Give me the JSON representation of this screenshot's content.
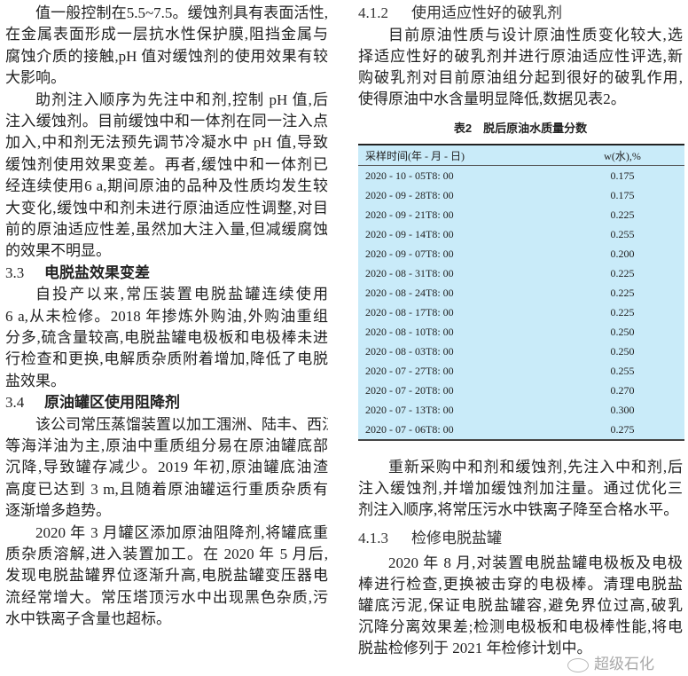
{
  "left": {
    "p1": [
      "值一般控制在5.5~7.5。缓蚀剂具有表面活性,",
      "在金属表面形成一层抗水性保护膜,阻挡金属与",
      "腐蚀介质的接触,pH 值对缓蚀剂的使用效果有较",
      "大影响。"
    ],
    "p2": [
      "助剂注入顺序为先注中和剂,控制 pH 值,后",
      "注入缓蚀剂。目前缓蚀中和一体剂在同一注入点",
      "加入,中和剂无法预先调节冷凝水中 pH 值,导致",
      "缓蚀剂使用效果变差。再者,缓蚀中和一体剂已",
      "经连续使用6 a,期间原油的品种及性质均发生较",
      "大变化,缓蚀中和剂未进行原油适应性调整,对目",
      "前的原油适应性差,虽然加大注入量,但减缓腐蚀",
      "的效果不明显。"
    ],
    "h33": {
      "num": "3.3",
      "title": "电脱盐效果变差"
    },
    "p3": [
      "自投产以来,常压装置电脱盐罐连续使用",
      "6 a,从未检修。2018 年掺炼外购油,外购油重组",
      "分多,硫含量较高,电脱盐罐电极板和电极棒未进",
      "行检查和更换,电解质杂质附着增加,降低了电脱",
      "盐效果。"
    ],
    "h34": {
      "num": "3.4",
      "title": "原油罐区使用阻降剂"
    },
    "p4": [
      "该公司常压蒸馏装置以加工涠洲、陆丰、西江",
      "等海洋油为主,原油中重质组分易在原油罐底部",
      "沉降,导致罐存减少。2019 年初,原油罐底油渣",
      "高度已达到 3 m,且随着原油罐运行重质杂质有",
      "逐渐增多趋势。"
    ],
    "p5": [
      "2020 年 3 月罐区添加原油阻降剂,将罐底重",
      "质杂质溶解,进入装置加工。在 2020 年 5 月后,",
      "发现电脱盐罐界位逐渐升高,电脱盐罐变压器电",
      "流经常增大。常压塔顶污水中出现黑色杂质,污",
      "水中铁离子含量也超标。"
    ]
  },
  "right": {
    "h412": {
      "num": "4.1.2",
      "title": "使用适应性好的破乳剂"
    },
    "p1": [
      "目前原油性质与设计原油性质变化较大,选",
      "择适应性好的破乳剂并进行原油适应性评选,新",
      "购破乳剂对目前原油组分起到很好的破乳作用,",
      "使得原油中水含量明显降低,数据见表2。"
    ],
    "table": {
      "caption": "表2　脱后原油水质量分数",
      "headers": [
        "采样时间(年 - 月 - 日)",
        "w(水),%"
      ],
      "rows": [
        [
          "2020 - 10 - 05T8: 00",
          "0.175"
        ],
        [
          "2020 - 09 - 28T8: 00",
          "0.175"
        ],
        [
          "2020 - 09 - 21T8: 00",
          "0.225"
        ],
        [
          "2020 - 09 - 14T8: 00",
          "0.255"
        ],
        [
          "2020 - 09 - 07T8: 00",
          "0.200"
        ],
        [
          "2020 - 08 - 31T8: 00",
          "0.225"
        ],
        [
          "2020 - 08 - 24T8: 00",
          "0.225"
        ],
        [
          "2020 - 08 - 17T8: 00",
          "0.225"
        ],
        [
          "2020 - 08 - 10T8: 00",
          "0.250"
        ],
        [
          "2020 - 08 - 03T8: 00",
          "0.250"
        ],
        [
          "2020 - 07 - 27T8: 00",
          "0.255"
        ],
        [
          "2020 - 07 - 20T8: 00",
          "0.270"
        ],
        [
          "2020 - 07 - 13T8: 00",
          "0.300"
        ],
        [
          "2020 - 07 - 06T8: 00",
          "0.275"
        ]
      ],
      "background": "#c9ebf9"
    },
    "p2": [
      "重新采购中和剂和缓蚀剂,先注入中和剂,后",
      "注入缓蚀剂,并增加缓蚀剂加注量。通过优化三",
      "剂注入顺序,将常压污水中铁离子降至合格水平。"
    ],
    "h413": {
      "num": "4.1.3",
      "title": "检修电脱盐罐"
    },
    "p3": [
      "2020 年 8 月,对装置电脱盐罐电极板及电极",
      "棒进行检查,更换被击穿的电极棒。清理电脱盐",
      "罐底污泥,保证电脱盐罐容,避免界位过高,破乳",
      "沉降分离效果差;检测电极板和电极棒性能,将电",
      "脱盐检修列于 2021 年检修计划中。"
    ]
  },
  "watermark": "超级石化"
}
